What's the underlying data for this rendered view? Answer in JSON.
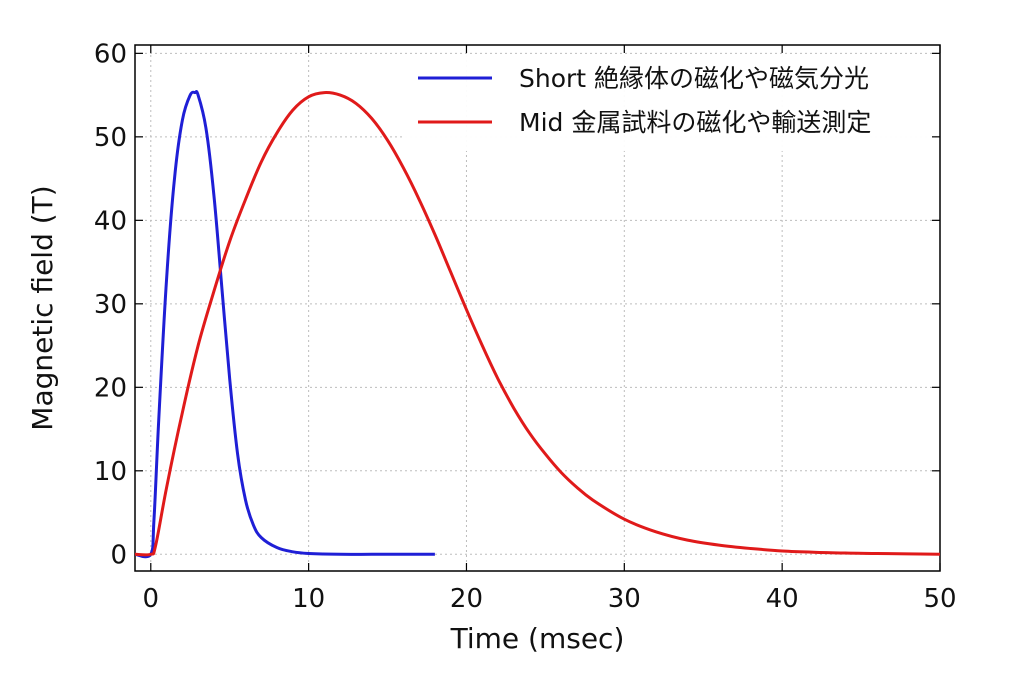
{
  "chart_data": {
    "type": "line",
    "xlabel": "Time (msec)",
    "ylabel": "Magnetic field (T)",
    "xlim": [
      -1,
      50
    ],
    "ylim": [
      -2,
      61
    ],
    "xticks": [
      0,
      10,
      20,
      30,
      40,
      50
    ],
    "yticks": [
      0,
      10,
      20,
      30,
      40,
      50,
      60
    ],
    "grid": true,
    "legend_position": "top-right",
    "series": [
      {
        "name": "Short 絶縁体の磁化や磁気分光",
        "color": "#1f1fd6",
        "x": [
          -1,
          0,
          0.2,
          0.5,
          1,
          1.5,
          2,
          2.5,
          2.8,
          3,
          3.5,
          4,
          4.5,
          5,
          5.5,
          6,
          6.5,
          7,
          8,
          9,
          10,
          12,
          14,
          16,
          18
        ],
        "y": [
          0,
          0,
          4,
          16,
          33,
          45,
          52,
          55,
          55.3,
          55,
          51,
          43,
          32,
          21,
          12,
          6.5,
          3.5,
          2,
          0.8,
          0.3,
          0.1,
          0,
          0,
          0,
          0
        ]
      },
      {
        "name": "Mid 金属試料の磁化や輸送測定",
        "color": "#e01a1a",
        "x": [
          -1,
          0,
          0.3,
          1,
          2,
          3,
          4,
          5,
          6,
          7,
          8,
          9,
          10,
          11,
          12,
          13,
          14,
          15,
          16,
          17,
          18,
          19,
          20,
          21,
          22,
          23,
          24,
          25,
          26,
          27,
          28,
          30,
          32,
          34,
          36,
          38,
          40,
          42,
          44,
          46,
          48,
          50
        ],
        "y": [
          0,
          0,
          1,
          8,
          17,
          25,
          31.5,
          37.5,
          42.5,
          47,
          50.5,
          53.2,
          54.8,
          55.3,
          55,
          54,
          52.2,
          49.6,
          46.3,
          42.5,
          38.3,
          33.8,
          29.3,
          25,
          21,
          17.5,
          14.5,
          12,
          9.8,
          8,
          6.5,
          4.2,
          2.7,
          1.7,
          1.1,
          0.7,
          0.4,
          0.25,
          0.15,
          0.1,
          0.05,
          0
        ]
      }
    ]
  }
}
